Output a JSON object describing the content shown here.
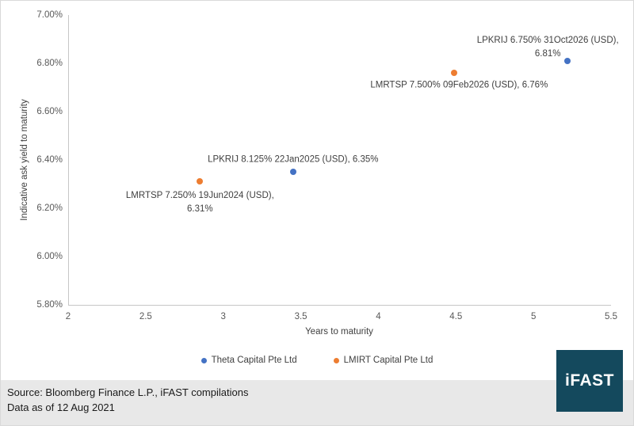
{
  "chart_data": {
    "type": "scatter",
    "title": "",
    "xlabel": "Years to maturity",
    "ylabel": "Indicative ask yield to maturity",
    "xlim": [
      2,
      5.5
    ],
    "ylim": [
      5.8,
      7.0
    ],
    "x_ticks": [
      2,
      2.5,
      3,
      3.5,
      4,
      4.5,
      5,
      5.5
    ],
    "x_tick_labels": [
      "2",
      "2.5",
      "3",
      "3.5",
      "4",
      "4.5",
      "5",
      "5.5"
    ],
    "y_ticks": [
      5.8,
      6.0,
      6.2,
      6.4,
      6.6,
      6.8,
      7.0
    ],
    "y_tick_labels": [
      "5.80%",
      "6.00%",
      "6.20%",
      "6.40%",
      "6.60%",
      "6.80%",
      "7.00%"
    ],
    "grid": false,
    "legend_position": "bottom",
    "series": [
      {
        "name": "Theta Capital Pte Ltd",
        "color": "#4472c4",
        "points": [
          {
            "x": 5.22,
            "y": 6.81,
            "label_lines": [
              "LPKRIJ 6.750% 31Oct2026 (USD),",
              "6.81%"
            ],
            "placement": "upper-left"
          },
          {
            "x": 3.45,
            "y": 6.35,
            "label_lines": [
              "LPKRIJ 8.125% 22Jan2025 (USD), 6.35%"
            ],
            "placement": "above"
          }
        ]
      },
      {
        "name": "LMIRT Capital Pte Ltd",
        "color": "#ed7d31",
        "points": [
          {
            "x": 4.49,
            "y": 6.76,
            "label_lines": [
              "LMRTSP 7.500% 09Feb2026 (USD), 6.76%"
            ],
            "placement": "below-right"
          },
          {
            "x": 2.85,
            "y": 6.31,
            "label_lines": [
              "LMRTSP 7.250% 19Jun2024 (USD),",
              "6.31%"
            ],
            "placement": "below"
          }
        ]
      }
    ]
  },
  "footer": {
    "source_line": "Source: Bloomberg Finance L.P., iFAST compilations",
    "date_line": "Data as of 12 Aug 2021"
  },
  "logo": {
    "text": "iFAST",
    "background": "#14495d",
    "text_color": "#ffffff"
  },
  "colors": {
    "axis_line": "#c6c6c6",
    "tick_text": "#595959",
    "label_text": "#3f3f3f",
    "footer_bg": "#e8e8e8",
    "page_border": "#d9d9d9"
  }
}
